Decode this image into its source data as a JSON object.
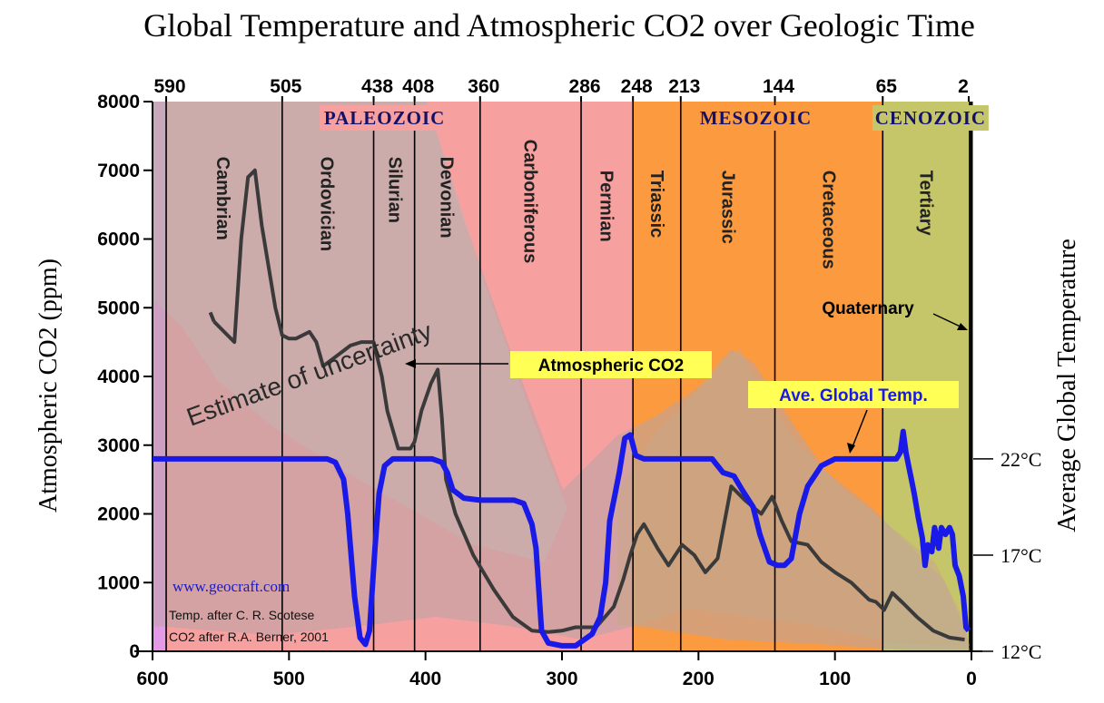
{
  "chart_data": {
    "type": "line",
    "title": "Global Temperature and Atmospheric CO2 over Geologic Time",
    "xlabel": "",
    "ylabel": "Atmospheric CO2 (ppm)",
    "y2label": "Average Global Temperature",
    "xlim": [
      600,
      0
    ],
    "ylim": [
      0,
      8000
    ],
    "x_ticks": [
      600,
      500,
      400,
      300,
      200,
      100,
      0
    ],
    "x_tick_labels": [
      "600",
      "500",
      "400",
      "300",
      "200",
      "100",
      "0"
    ],
    "y_ticks": [
      0,
      1000,
      2000,
      3000,
      4000,
      5000,
      6000,
      7000,
      8000
    ],
    "y_tick_labels": [
      "0",
      "1000",
      "2000",
      "3000",
      "4000",
      "5000",
      "6000",
      "7000",
      "8000"
    ],
    "boundaries": [
      590,
      505,
      438,
      408,
      360,
      286,
      248,
      213,
      144,
      65,
      2
    ],
    "boundary_labels": [
      "590",
      "505",
      "438",
      "408",
      "360",
      "286",
      "248",
      "213",
      "144",
      "65",
      "2"
    ],
    "eras": [
      {
        "name": "PALEOZOIC",
        "from": 590,
        "to": 248,
        "color": "#f7a0a0",
        "x_center": 430
      },
      {
        "name": "MESOZOIC",
        "from": 248,
        "to": 65,
        "color": "#fb9a3f",
        "x_center": 158
      },
      {
        "name": "CENOZOIC",
        "from": 65,
        "to": 2,
        "color": "#c5c56a",
        "x_center": 30
      }
    ],
    "periods": [
      {
        "name": "Cambrian",
        "x": 548,
        "y": 7200
      },
      {
        "name": "Ordovician",
        "x": 472,
        "y": 7200
      },
      {
        "name": "Silurian",
        "x": 422,
        "y": 7200
      },
      {
        "name": "Devonian",
        "x": 384,
        "y": 7200
      },
      {
        "name": "Carboniferous",
        "x": 323,
        "y": 7450
      },
      {
        "name": "Permian",
        "x": 267,
        "y": 7000
      },
      {
        "name": "Triassic",
        "x": 230,
        "y": 7000
      },
      {
        "name": "Jurassic",
        "x": 178,
        "y": 7000
      },
      {
        "name": "Cretaceous",
        "x": 104,
        "y": 7000
      },
      {
        "name": "Tertiary",
        "x": 33,
        "y": 7000
      }
    ],
    "temp_axis": {
      "labels": [
        "22°C",
        "17°C",
        "12°C"
      ],
      "values": [
        22,
        17,
        12
      ],
      "co2_equivalent": [
        2800,
        1400,
        0
      ]
    },
    "series": [
      {
        "name": "Atmospheric CO2",
        "color": "#3a3a3a",
        "x": [
          555,
          545,
          540,
          535,
          530,
          525,
          520,
          510,
          505,
          500,
          495,
          485,
          480,
          475,
          465,
          455,
          447,
          441,
          438,
          432,
          428,
          420,
          411,
          408,
          403,
          396,
          391,
          388,
          385,
          378,
          365,
          350,
          336,
          322,
          310,
          300,
          290,
          275,
          262,
          255,
          250,
          245,
          240,
          230,
          222,
          212,
          203,
          195,
          186,
          176,
          166,
          154,
          146,
          139,
          132,
          120,
          110,
          100,
          88,
          75,
          70,
          64,
          58,
          50,
          40,
          28,
          16,
          5
        ],
        "y": [
          4800,
          4600,
          4500,
          6000,
          6900,
          7000,
          6200,
          5000,
          4600,
          4550,
          4550,
          4650,
          4500,
          4150,
          4300,
          4450,
          4500,
          4500,
          4500,
          4000,
          3500,
          2950,
          2950,
          3050,
          3500,
          3900,
          4100,
          3400,
          2500,
          2000,
          1400,
          900,
          500,
          300,
          280,
          300,
          350,
          350,
          650,
          1050,
          1400,
          1700,
          1850,
          1500,
          1250,
          1550,
          1400,
          1150,
          1350,
          2400,
          2200,
          2000,
          2250,
          1900,
          1600,
          1550,
          1300,
          1150,
          1000,
          750,
          720,
          600,
          850,
          700,
          500,
          300,
          200,
          170
        ]
      },
      {
        "name": "Ave. Global Temp.",
        "color": "#1a1ae8",
        "x": [
          600,
          580,
          560,
          540,
          520,
          500,
          480,
          472,
          466,
          460,
          457,
          452,
          448,
          444,
          441,
          437,
          434,
          430,
          424,
          414,
          402,
          395,
          388,
          384,
          380,
          372,
          360,
          335,
          328,
          322,
          319,
          315,
          310,
          300,
          290,
          278,
          272,
          268,
          265,
          262,
          258,
          254,
          250,
          246,
          240,
          230,
          210,
          190,
          186,
          182,
          174,
          168,
          160,
          155,
          148,
          142,
          137,
          132,
          126,
          120,
          110,
          100,
          90,
          80,
          70,
          60,
          55,
          52,
          50,
          48,
          46,
          44,
          42,
          39,
          36,
          34,
          32,
          29,
          27,
          24,
          22,
          19,
          16,
          14,
          12,
          9,
          6,
          4,
          2
        ],
        "y": [
          2800,
          2800,
          2800,
          2800,
          2800,
          2800,
          2800,
          2800,
          2750,
          2500,
          2000,
          800,
          200,
          100,
          300,
          1500,
          2300,
          2700,
          2800,
          2800,
          2800,
          2800,
          2750,
          2600,
          2350,
          2230,
          2200,
          2200,
          2150,
          1850,
          1500,
          300,
          120,
          80,
          80,
          250,
          500,
          1000,
          1900,
          2200,
          2600,
          3100,
          3150,
          2850,
          2800,
          2800,
          2800,
          2800,
          2700,
          2600,
          2550,
          2350,
          2100,
          1700,
          1300,
          1250,
          1250,
          1350,
          2000,
          2400,
          2700,
          2800,
          2800,
          2800,
          2800,
          2800,
          2800,
          2900,
          3200,
          2900,
          2700,
          2500,
          2300,
          1950,
          1650,
          1250,
          1550,
          1450,
          1800,
          1500,
          1800,
          1700,
          1800,
          1700,
          1250,
          1100,
          800,
          350,
          300
        ]
      }
    ],
    "annotations": [
      {
        "text": "Atmospheric CO2"
      },
      {
        "text": "Ave. Global Temp."
      },
      {
        "text": "Quaternary"
      },
      {
        "text": "Estimate of uncertainty"
      }
    ],
    "credits": {
      "url": "www.geocraft.com",
      "temp_source": "Temp. after C. R. Scotese",
      "co2_source": "CO2 after R.A. Berner, 2001"
    }
  }
}
